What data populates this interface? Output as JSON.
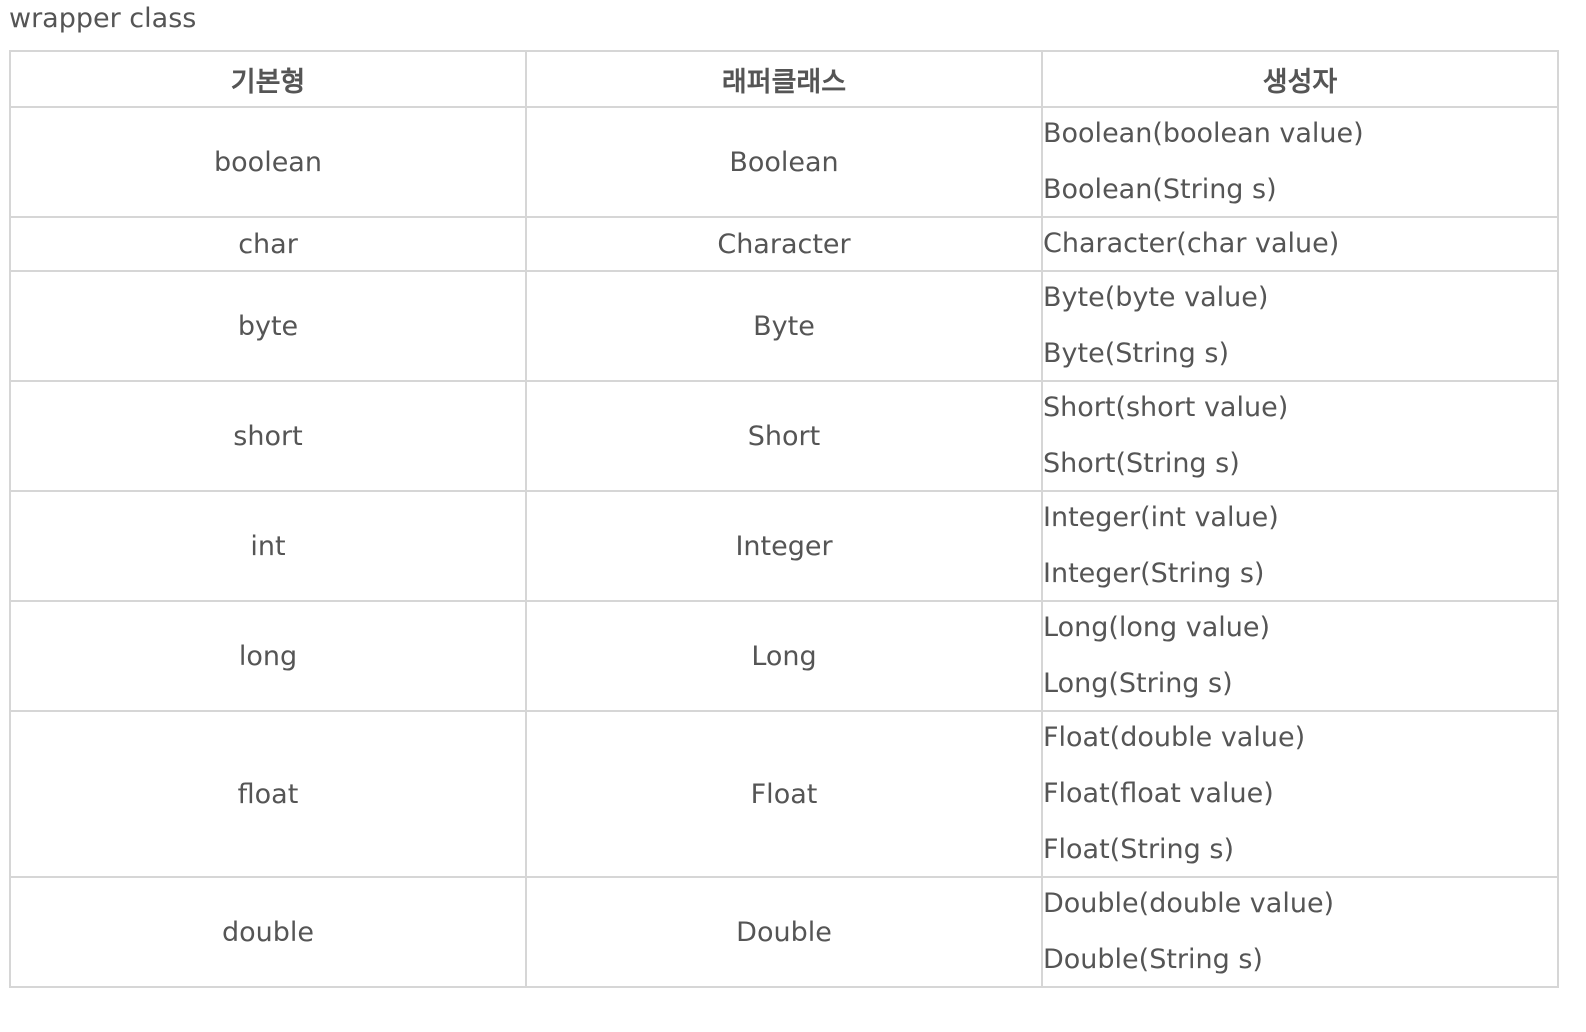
{
  "caption": "wrapper class",
  "headers": {
    "primitive": "기본형",
    "wrapper": "래퍼클래스",
    "constructor": "생성자"
  },
  "rows": [
    {
      "primitive": "boolean",
      "wrapper": "Boolean",
      "constructors": [
        "Boolean(boolean value)",
        "Boolean(String s)"
      ]
    },
    {
      "primitive": "char",
      "wrapper": "Character",
      "constructors": [
        "Character(char value)"
      ]
    },
    {
      "primitive": "byte",
      "wrapper": "Byte",
      "constructors": [
        "Byte(byte value)",
        "Byte(String s)"
      ]
    },
    {
      "primitive": "short",
      "wrapper": "Short",
      "constructors": [
        "Short(short value)",
        "Short(String s)"
      ]
    },
    {
      "primitive": "int",
      "wrapper": "Integer",
      "constructors": [
        "Integer(int value)",
        "Integer(String s)"
      ]
    },
    {
      "primitive": "long",
      "wrapper": "Long",
      "constructors": [
        "Long(long value)",
        "Long(String s)"
      ]
    },
    {
      "primitive": "float",
      "wrapper": "Float",
      "constructors": [
        "Float(double value)",
        "Float(float value)",
        "Float(String s)"
      ]
    },
    {
      "primitive": "double",
      "wrapper": "Double",
      "constructors": [
        "Double(double value)",
        "Double(String s)"
      ]
    }
  ]
}
